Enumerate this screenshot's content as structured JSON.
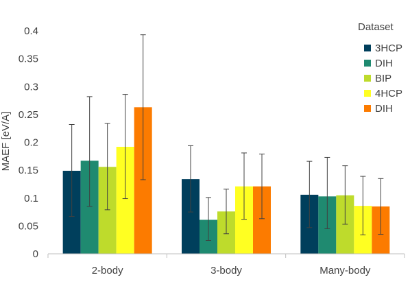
{
  "chart_data": {
    "type": "bar",
    "ylabel": "MAEF [eV/A]",
    "ylim": [
      0,
      0.4
    ],
    "yticks": [
      "0",
      "0.05",
      "0.1",
      "0.15",
      "0.2",
      "0.25",
      "0.3",
      "0.35",
      "0.4"
    ],
    "categories": [
      "2-body",
      "3-body",
      "Many-body"
    ],
    "legend_title": "Dataset",
    "legend_position": "top-right",
    "grid": false,
    "series": [
      {
        "name": "3HCP",
        "color": "#003f5c",
        "values": [
          0.149,
          0.134,
          0.106
        ],
        "err_low": [
          0.067,
          0.075,
          0.047
        ],
        "err_high": [
          0.232,
          0.194,
          0.166
        ]
      },
      {
        "name": "DIH",
        "color": "#1f8a70",
        "values": [
          0.167,
          0.061,
          0.103
        ],
        "err_low": [
          0.085,
          0.024,
          0.045
        ],
        "err_high": [
          0.282,
          0.101,
          0.173
        ]
      },
      {
        "name": "BIP",
        "color": "#bedb2c",
        "values": [
          0.156,
          0.076,
          0.105
        ],
        "err_low": [
          0.079,
          0.036,
          0.053
        ],
        "err_high": [
          0.234,
          0.116,
          0.158
        ]
      },
      {
        "name": "4HCP",
        "color": "#ffff22",
        "values": [
          0.192,
          0.121,
          0.086
        ],
        "err_low": [
          0.099,
          0.062,
          0.034
        ],
        "err_high": [
          0.286,
          0.181,
          0.139
        ]
      },
      {
        "name": "DIH",
        "color": "#fc7b00",
        "values": [
          0.263,
          0.121,
          0.085
        ],
        "err_low": [
          0.133,
          0.063,
          0.035
        ],
        "err_high": [
          0.393,
          0.179,
          0.135
        ]
      }
    ]
  }
}
